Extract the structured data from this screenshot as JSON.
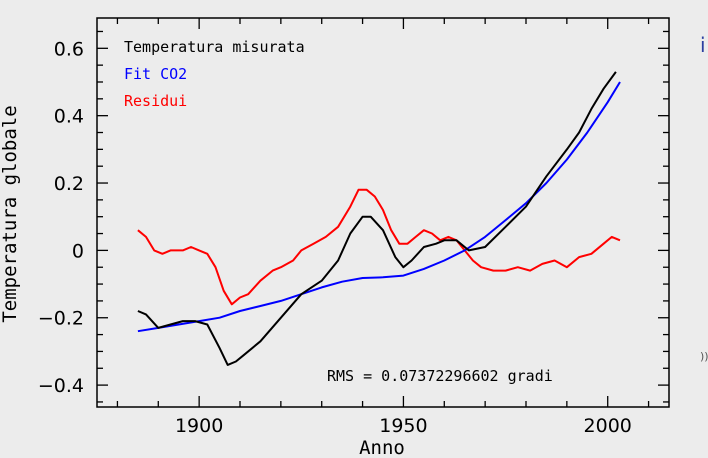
{
  "edge": {
    "top_right": "i",
    "mid_right": "))"
  },
  "chart_data": {
    "type": "line",
    "xlabel": "Anno",
    "ylabel": "Temperatura globale",
    "xlim": [
      1875,
      2015
    ],
    "ylim": [
      -0.465,
      0.69
    ],
    "x_ticks": [
      1900,
      1950,
      2000
    ],
    "y_ticks": [
      -0.4,
      -0.2,
      0,
      0.2,
      0.4,
      0.6
    ],
    "x_tick_labels": [
      "1900",
      "1950",
      "2000"
    ],
    "y_tick_labels": [
      "−0.4",
      "−0.2",
      "0",
      "0.2",
      "0.4",
      "0.6"
    ],
    "legend_position": "top-left",
    "annotation": "RMS = 0.07372296602 gradi",
    "series": [
      {
        "name": "Temperatura misurata",
        "color": "#000000",
        "points": [
          [
            1885,
            -0.18
          ],
          [
            1887,
            -0.19
          ],
          [
            1890,
            -0.23
          ],
          [
            1893,
            -0.22
          ],
          [
            1896,
            -0.21
          ],
          [
            1899,
            -0.21
          ],
          [
            1902,
            -0.22
          ],
          [
            1905,
            -0.29
          ],
          [
            1907,
            -0.34
          ],
          [
            1909,
            -0.33
          ],
          [
            1911,
            -0.31
          ],
          [
            1915,
            -0.27
          ],
          [
            1920,
            -0.2
          ],
          [
            1925,
            -0.13
          ],
          [
            1930,
            -0.09
          ],
          [
            1934,
            -0.03
          ],
          [
            1937,
            0.05
          ],
          [
            1940,
            0.1
          ],
          [
            1942,
            0.1
          ],
          [
            1945,
            0.06
          ],
          [
            1948,
            -0.02
          ],
          [
            1950,
            -0.05
          ],
          [
            1952,
            -0.03
          ],
          [
            1955,
            0.01
          ],
          [
            1958,
            0.02
          ],
          [
            1960,
            0.03
          ],
          [
            1963,
            0.03
          ],
          [
            1966,
            0.0
          ],
          [
            1970,
            0.01
          ],
          [
            1975,
            0.07
          ],
          [
            1980,
            0.13
          ],
          [
            1985,
            0.22
          ],
          [
            1990,
            0.3
          ],
          [
            1993,
            0.35
          ],
          [
            1996,
            0.42
          ],
          [
            1999,
            0.48
          ],
          [
            2002,
            0.53
          ]
        ]
      },
      {
        "name": "Fit CO2",
        "color": "#0000ff",
        "points": [
          [
            1885,
            -0.24
          ],
          [
            1890,
            -0.23
          ],
          [
            1895,
            -0.22
          ],
          [
            1900,
            -0.21
          ],
          [
            1905,
            -0.2
          ],
          [
            1910,
            -0.18
          ],
          [
            1915,
            -0.165
          ],
          [
            1920,
            -0.15
          ],
          [
            1925,
            -0.13
          ],
          [
            1930,
            -0.11
          ],
          [
            1935,
            -0.093
          ],
          [
            1940,
            -0.082
          ],
          [
            1945,
            -0.08
          ],
          [
            1950,
            -0.075
          ],
          [
            1955,
            -0.055
          ],
          [
            1960,
            -0.03
          ],
          [
            1965,
            0.0
          ],
          [
            1970,
            0.04
          ],
          [
            1975,
            0.09
          ],
          [
            1980,
            0.14
          ],
          [
            1985,
            0.2
          ],
          [
            1990,
            0.27
          ],
          [
            1995,
            0.35
          ],
          [
            2000,
            0.44
          ],
          [
            2003,
            0.5
          ]
        ]
      },
      {
        "name": "Residui",
        "color": "#ff0000",
        "points": [
          [
            1885,
            0.06
          ],
          [
            1887,
            0.04
          ],
          [
            1889,
            0.0
          ],
          [
            1891,
            -0.01
          ],
          [
            1893,
            0.0
          ],
          [
            1896,
            0.0
          ],
          [
            1898,
            0.01
          ],
          [
            1900,
            0.0
          ],
          [
            1902,
            -0.01
          ],
          [
            1904,
            -0.05
          ],
          [
            1906,
            -0.12
          ],
          [
            1908,
            -0.16
          ],
          [
            1910,
            -0.14
          ],
          [
            1912,
            -0.13
          ],
          [
            1915,
            -0.09
          ],
          [
            1918,
            -0.06
          ],
          [
            1920,
            -0.05
          ],
          [
            1923,
            -0.03
          ],
          [
            1925,
            0.0
          ],
          [
            1928,
            0.02
          ],
          [
            1931,
            0.04
          ],
          [
            1934,
            0.07
          ],
          [
            1937,
            0.13
          ],
          [
            1939,
            0.18
          ],
          [
            1941,
            0.18
          ],
          [
            1943,
            0.16
          ],
          [
            1945,
            0.12
          ],
          [
            1947,
            0.06
          ],
          [
            1949,
            0.02
          ],
          [
            1951,
            0.02
          ],
          [
            1953,
            0.04
          ],
          [
            1955,
            0.06
          ],
          [
            1957,
            0.05
          ],
          [
            1959,
            0.03
          ],
          [
            1961,
            0.04
          ],
          [
            1963,
            0.03
          ],
          [
            1965,
            0.0
          ],
          [
            1967,
            -0.03
          ],
          [
            1969,
            -0.05
          ],
          [
            1972,
            -0.06
          ],
          [
            1975,
            -0.06
          ],
          [
            1978,
            -0.05
          ],
          [
            1981,
            -0.06
          ],
          [
            1984,
            -0.04
          ],
          [
            1987,
            -0.03
          ],
          [
            1990,
            -0.05
          ],
          [
            1993,
            -0.02
          ],
          [
            1996,
            -0.01
          ],
          [
            1999,
            0.02
          ],
          [
            2001,
            0.04
          ],
          [
            2003,
            0.03
          ]
        ]
      }
    ]
  }
}
